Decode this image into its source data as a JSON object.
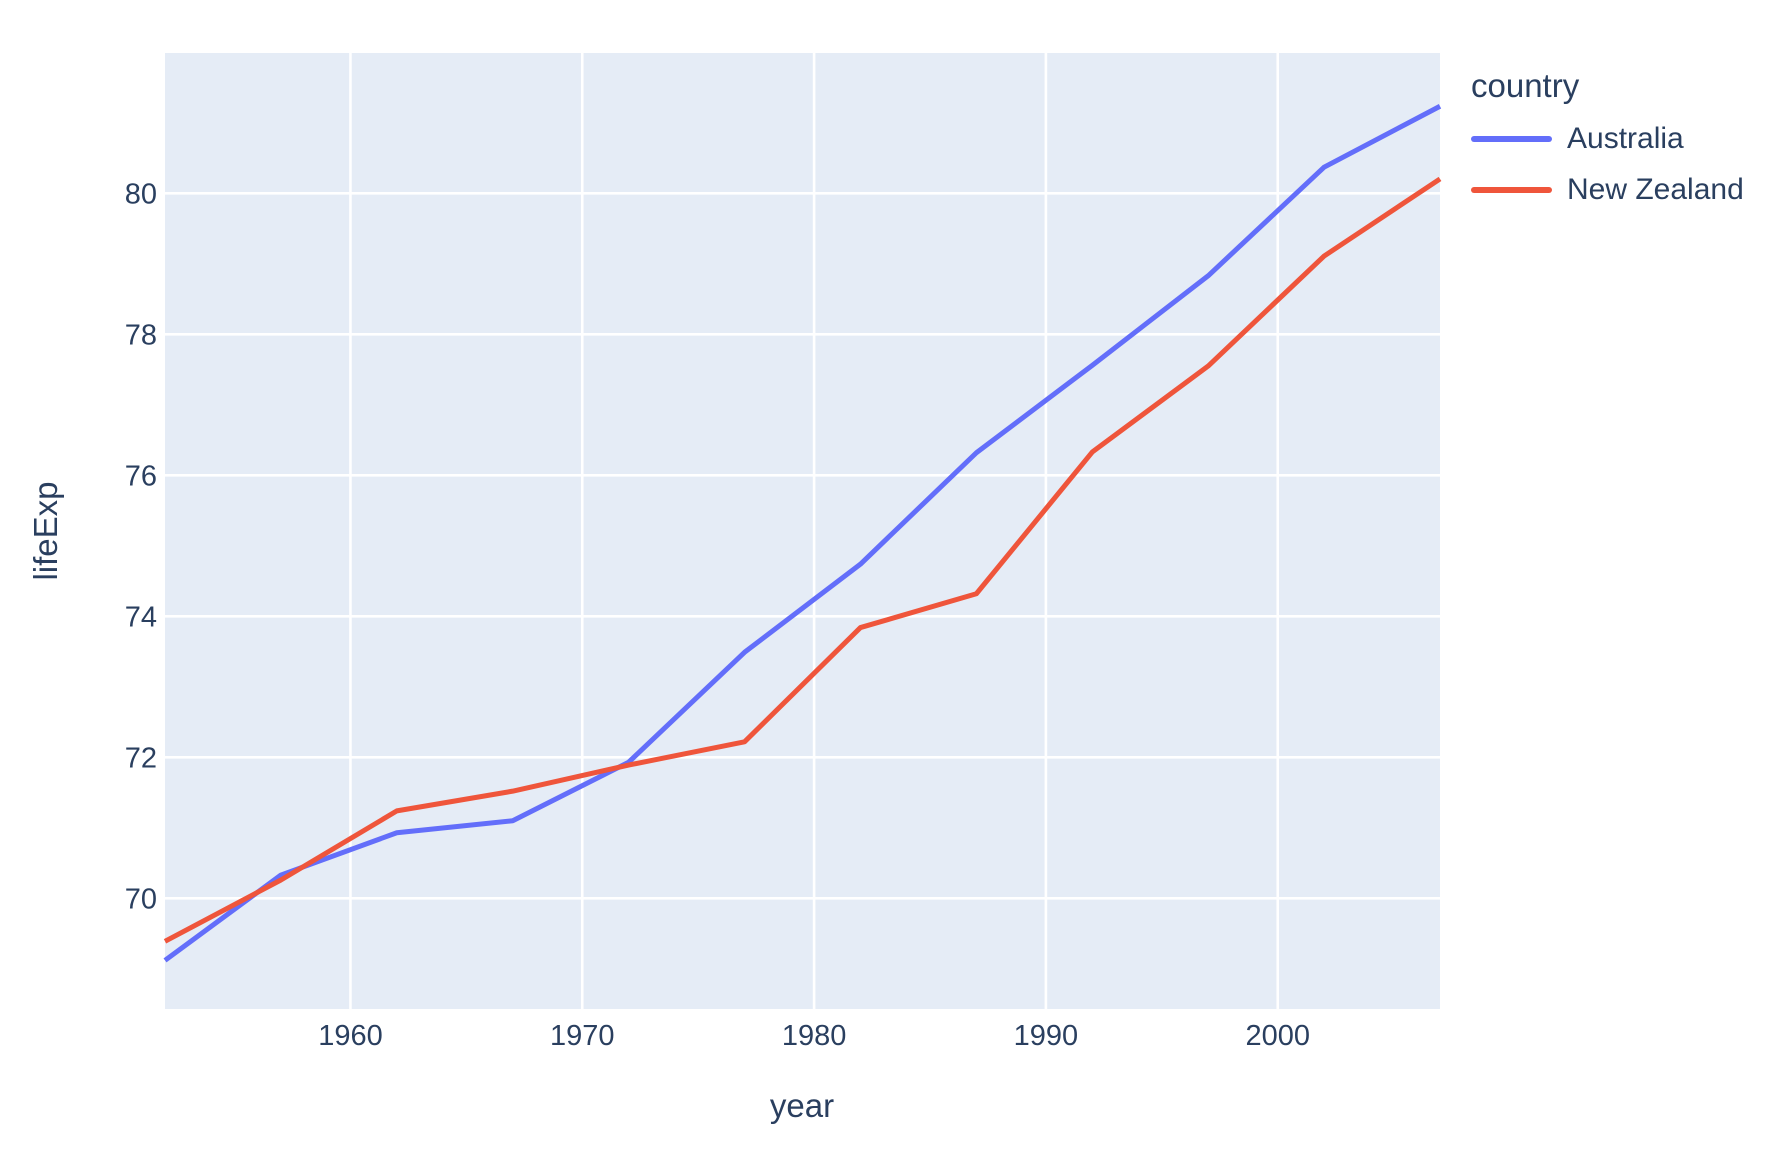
{
  "chart_data": {
    "type": "line",
    "title": "",
    "xlabel": "year",
    "ylabel": "lifeExp",
    "legend_title": "country",
    "x": [
      1952,
      1957,
      1962,
      1967,
      1972,
      1977,
      1982,
      1987,
      1992,
      1997,
      2002,
      2007
    ],
    "series": [
      {
        "name": "Australia",
        "color": "#636EFA",
        "values": [
          69.12,
          70.33,
          70.93,
          71.1,
          71.93,
          73.49,
          74.74,
          76.32,
          77.56,
          78.83,
          80.37,
          81.235
        ]
      },
      {
        "name": "New Zealand",
        "color": "#EF553B",
        "values": [
          69.39,
          70.26,
          71.24,
          71.52,
          71.89,
          72.22,
          73.84,
          74.32,
          76.33,
          77.55,
          79.11,
          80.204
        ]
      }
    ],
    "x_ticks": [
      1960,
      1970,
      1980,
      1990,
      2000
    ],
    "y_ticks": [
      70,
      72,
      74,
      76,
      78,
      80
    ],
    "xlim": [
      1952,
      2007
    ],
    "ylim": [
      68.43,
      81.99
    ],
    "grid": true,
    "legend_position": "top-right",
    "colors": {
      "plot_bg": "#E5ECF6",
      "grid": "#FFFFFF",
      "text": "#2A3F5F"
    }
  }
}
